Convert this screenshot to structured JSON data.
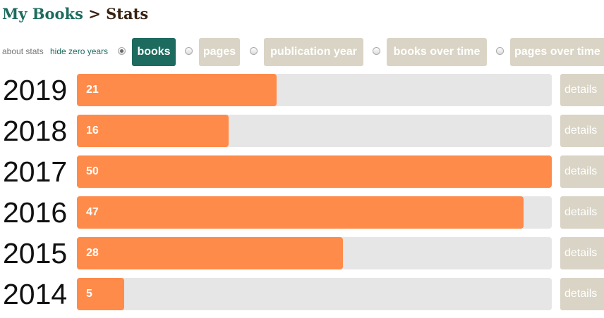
{
  "breadcrumb": {
    "parent": "My Books",
    "separator": ">",
    "current": "Stats"
  },
  "controls": {
    "about_link": "about stats",
    "hide_zero_link": "hide zero years",
    "tabs": [
      {
        "label": "books",
        "selected": true
      },
      {
        "label": "pages",
        "selected": false
      },
      {
        "label": "publication year",
        "selected": false
      },
      {
        "label": "books over time",
        "selected": false
      },
      {
        "label": "pages over time",
        "selected": false
      }
    ]
  },
  "colors": {
    "brand": "#1d6b5f",
    "bar_fill": "#ff8b4a",
    "bar_track": "#e6e6e6",
    "inactive_button": "#d9d4c5"
  },
  "details_label": "details",
  "chart_data": {
    "type": "bar",
    "orientation": "horizontal",
    "categories": [
      "2019",
      "2018",
      "2017",
      "2016",
      "2015",
      "2014"
    ],
    "values": [
      21,
      16,
      50,
      47,
      28,
      5
    ],
    "xlim": [
      0,
      50
    ]
  }
}
